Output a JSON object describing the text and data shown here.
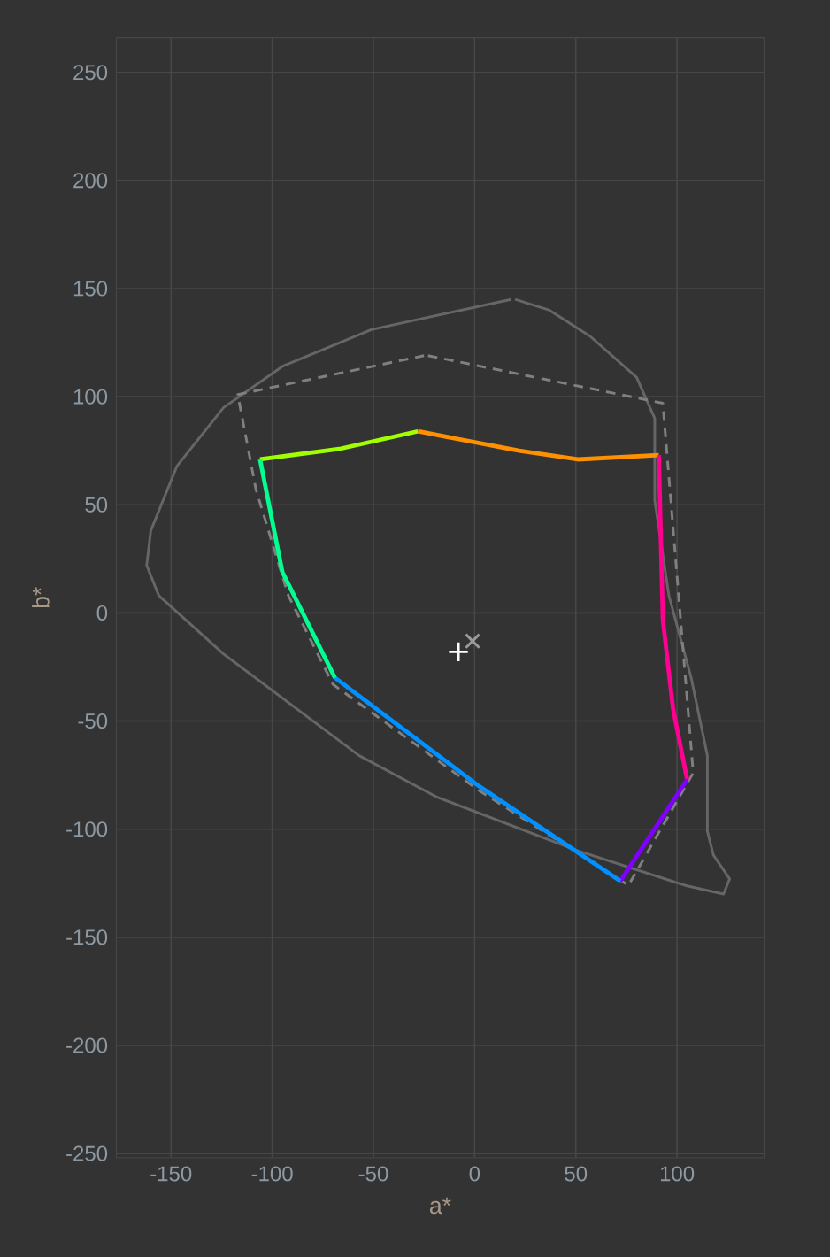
{
  "chart_data": {
    "type": "line",
    "xlabel": "a*",
    "ylabel": "b*",
    "xlim": [
      -177,
      143
    ],
    "ylim": [
      -252,
      266
    ],
    "xticks": [
      -150,
      -100,
      -50,
      0,
      50,
      100
    ],
    "yticks": [
      -250,
      -200,
      -150,
      -100,
      -50,
      0,
      50,
      100,
      150,
      200,
      250
    ],
    "grid": true,
    "series": [
      {
        "color": "#666666",
        "line_style": "solid",
        "x": [
          18,
          -51,
          -95,
          -124,
          -147,
          -160,
          -162,
          -156,
          -124,
          -57,
          -19,
          51,
          104,
          123,
          126,
          118,
          115,
          115,
          107,
          96,
          89,
          89,
          80,
          57,
          37,
          20
        ],
        "values": [
          145,
          131,
          114,
          95,
          68,
          38,
          22,
          8,
          -19,
          -66,
          -85,
          -110,
          -126,
          -130,
          -123,
          -112,
          -101,
          -66,
          -30,
          8,
          52,
          90,
          109,
          128,
          140,
          145
        ]
      },
      {
        "color": "#808080",
        "line_style": "dashed",
        "x": [
          -23,
          93,
          108,
          76,
          2,
          -70,
          -92,
          -108,
          -117,
          -25
        ],
        "values": [
          119,
          97,
          -74,
          -126,
          -82,
          -33,
          8,
          57,
          101,
          119
        ]
      },
      {
        "color": "#a0ff00",
        "line_style": "solid",
        "x": [
          -106,
          -66,
          -28
        ],
        "values": [
          71,
          76,
          84
        ]
      },
      {
        "color": "#ff9000",
        "line_style": "solid",
        "x": [
          -28,
          22,
          51,
          91
        ],
        "values": [
          84,
          75,
          71,
          73
        ]
      },
      {
        "color": "#ff0090",
        "line_style": "solid",
        "x": [
          91,
          93,
          98,
          105
        ],
        "values": [
          73,
          -3,
          -44,
          -77
        ]
      },
      {
        "color": "#8000ff",
        "line_style": "solid",
        "x": [
          105,
          72
        ],
        "values": [
          -77,
          -124
        ]
      },
      {
        "color": "#0090ff",
        "line_style": "solid",
        "x": [
          72,
          2,
          -69
        ],
        "values": [
          -124,
          -80,
          -30
        ]
      },
      {
        "color": "#00ff90",
        "line_style": "solid",
        "x": [
          -69,
          -95,
          -106
        ],
        "values": [
          -30,
          19,
          71
        ]
      },
      {
        "type": "scatter",
        "marker": "plus",
        "color": "#ffffff",
        "x": [
          -8
        ],
        "values": [
          -18
        ]
      },
      {
        "type": "scatter",
        "marker": "cross",
        "color": "#9a9a9a",
        "x": [
          -1
        ],
        "values": [
          -13
        ]
      }
    ]
  }
}
